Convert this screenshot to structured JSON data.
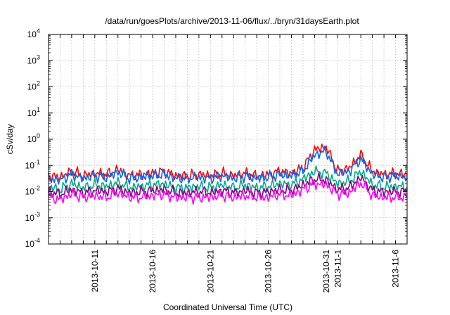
{
  "chart_data": {
    "type": "line",
    "title": "/data/run/goesPlots/archive/2013-11-06/flux/../bryn/31daysEarth.plot",
    "xlabel": "Coordinated Universal Time (UTC)",
    "ylabel": "cSv/day",
    "y_scale": "log",
    "ylim": [
      0.0001,
      10000
    ],
    "xlim": [
      "2013-10-07",
      "2013-11-07"
    ],
    "grid": true,
    "legend": "none",
    "y_ticks": [
      {
        "value": 0.0001,
        "base": "10",
        "exp": "-4"
      },
      {
        "value": 0.001,
        "base": "10",
        "exp": "-3"
      },
      {
        "value": 0.01,
        "base": "10",
        "exp": "-2"
      },
      {
        "value": 0.1,
        "base": "10",
        "exp": "-1"
      },
      {
        "value": 1,
        "base": "10",
        "exp": "0"
      },
      {
        "value": 10,
        "base": "10",
        "exp": "1"
      },
      {
        "value": 100,
        "base": "10",
        "exp": "2"
      },
      {
        "value": 1000,
        "base": "10",
        "exp": "3"
      },
      {
        "value": 10000,
        "base": "10",
        "exp": "4"
      }
    ],
    "x_tick_labels": [
      {
        "date": "2013-10-11",
        "label": "2013-10-11"
      },
      {
        "date": "2013-10-16",
        "label": "2013-10-16"
      },
      {
        "date": "2013-10-21",
        "label": "2013-10-21"
      },
      {
        "date": "2013-10-26",
        "label": "2013-10-26"
      },
      {
        "date": "2013-10-31",
        "label": "2013-10-31"
      },
      {
        "date": "2013-11-01",
        "label": "2013-11-1"
      },
      {
        "date": "2013-11-06",
        "label": "2013-11-6"
      }
    ],
    "x": [
      "2013-10-07",
      "2013-10-08",
      "2013-10-09",
      "2013-10-10",
      "2013-10-11",
      "2013-10-12",
      "2013-10-13",
      "2013-10-14",
      "2013-10-15",
      "2013-10-16",
      "2013-10-17",
      "2013-10-18",
      "2013-10-19",
      "2013-10-20",
      "2013-10-21",
      "2013-10-22",
      "2013-10-23",
      "2013-10-24",
      "2013-10-25",
      "2013-10-26",
      "2013-10-27",
      "2013-10-28",
      "2013-10-29",
      "2013-10-30",
      "2013-10-31",
      "2013-11-01",
      "2013-11-02",
      "2013-11-03",
      "2013-11-04",
      "2013-11-05",
      "2013-11-06",
      "2013-11-07"
    ],
    "series": [
      {
        "color": "#ff0000",
        "values": [
          0.04,
          0.035,
          0.06,
          0.04,
          0.05,
          0.045,
          0.07,
          0.04,
          0.045,
          0.05,
          0.06,
          0.04,
          0.04,
          0.045,
          0.04,
          0.05,
          0.04,
          0.05,
          0.04,
          0.045,
          0.06,
          0.05,
          0.08,
          0.4,
          0.5,
          0.06,
          0.08,
          0.25,
          0.06,
          0.045,
          0.05,
          0.045
        ]
      },
      {
        "color": "#0066ff",
        "values": [
          0.03,
          0.028,
          0.045,
          0.032,
          0.04,
          0.035,
          0.055,
          0.032,
          0.035,
          0.04,
          0.045,
          0.032,
          0.032,
          0.035,
          0.032,
          0.04,
          0.032,
          0.04,
          0.032,
          0.035,
          0.045,
          0.04,
          0.06,
          0.25,
          0.35,
          0.045,
          0.06,
          0.18,
          0.045,
          0.035,
          0.04,
          0.035
        ]
      },
      {
        "color": "#00aa88",
        "values": [
          0.015,
          0.012,
          0.02,
          0.014,
          0.018,
          0.016,
          0.022,
          0.014,
          0.016,
          0.018,
          0.02,
          0.014,
          0.014,
          0.016,
          0.014,
          0.018,
          0.014,
          0.018,
          0.014,
          0.016,
          0.02,
          0.018,
          0.03,
          0.06,
          0.05,
          0.02,
          0.025,
          0.06,
          0.018,
          0.015,
          0.016,
          0.015
        ]
      },
      {
        "color": "#800080",
        "values": [
          0.01,
          0.008,
          0.012,
          0.009,
          0.011,
          0.01,
          0.013,
          0.009,
          0.01,
          0.011,
          0.012,
          0.009,
          0.009,
          0.01,
          0.009,
          0.011,
          0.009,
          0.011,
          0.009,
          0.01,
          0.012,
          0.011,
          0.018,
          0.03,
          0.028,
          0.012,
          0.014,
          0.035,
          0.011,
          0.01,
          0.01,
          0.01
        ]
      },
      {
        "color": "#ff00ff",
        "values": [
          0.006,
          0.005,
          0.008,
          0.006,
          0.007,
          0.006,
          0.009,
          0.006,
          0.006,
          0.007,
          0.008,
          0.006,
          0.006,
          0.006,
          0.006,
          0.007,
          0.006,
          0.007,
          0.006,
          0.006,
          0.008,
          0.007,
          0.012,
          0.02,
          0.018,
          0.008,
          0.009,
          0.022,
          0.007,
          0.006,
          0.006,
          0.006
        ]
      }
    ]
  }
}
